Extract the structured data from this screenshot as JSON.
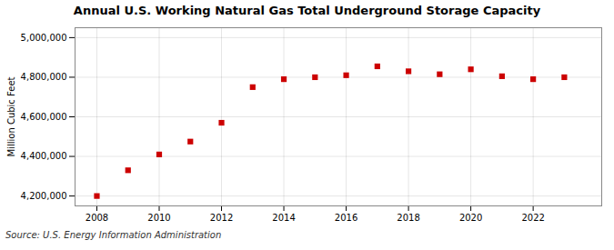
{
  "chart_data": {
    "type": "scatter",
    "title": "Annual U.S. Working Natural Gas Total Underground Storage Capacity",
    "ylabel": "Million Cubic Feet",
    "source": "Source: U.S. Energy Information Administration",
    "x": [
      2008,
      2009,
      2010,
      2011,
      2012,
      2013,
      2014,
      2015,
      2016,
      2017,
      2018,
      2019,
      2020,
      2021,
      2022,
      2023
    ],
    "values": [
      4200000,
      4330000,
      4410000,
      4475000,
      4570000,
      4750000,
      4790000,
      4800000,
      4810000,
      4855000,
      4830000,
      4815000,
      4840000,
      4805000,
      4790000,
      4800000
    ],
    "color": "#cc0000",
    "marker": "square",
    "xlim": [
      2007.3,
      2024.2
    ],
    "xticks": [
      2008,
      2010,
      2012,
      2014,
      2016,
      2018,
      2020,
      2022
    ],
    "ylim": [
      4150000,
      5050000
    ],
    "yticks": [
      {
        "value": 4200000,
        "label": "4,200,000"
      },
      {
        "value": 4400000,
        "label": "4,400,000"
      },
      {
        "value": 4600000,
        "label": "4,600,000"
      },
      {
        "value": 4800000,
        "label": "4,800,000"
      },
      {
        "value": 5000000,
        "label": "5,000,000"
      }
    ],
    "grid": true
  }
}
